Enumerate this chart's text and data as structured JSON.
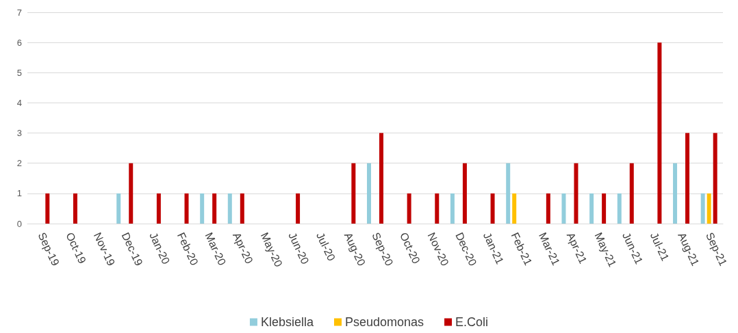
{
  "chart_data": {
    "type": "bar",
    "categories": [
      "Sep-19",
      "Oct-19",
      "Nov-19",
      "Dec-19",
      "Jan-20",
      "Feb-20",
      "Mar-20",
      "Apr-20",
      "May-20",
      "Jun-20",
      "Jul-20",
      "Aug-20",
      "Sep-20",
      "Oct-20",
      "Nov-20",
      "Dec-20",
      "Jan-21",
      "Feb-21",
      "Mar-21",
      "Apr-21",
      "May-21",
      "Jun-21",
      "Jul-21",
      "Aug-21",
      "Sep-21"
    ],
    "series": [
      {
        "name": "Klebsiella",
        "color": "#92cddc",
        "values": [
          0,
          0,
          0,
          1,
          0,
          0,
          1,
          1,
          0,
          0,
          0,
          0,
          2,
          0,
          0,
          1,
          0,
          2,
          0,
          1,
          1,
          1,
          0,
          2,
          1
        ]
      },
      {
        "name": "Pseudomonas",
        "color": "#ffc000",
        "values": [
          0,
          0,
          0,
          0,
          0,
          0,
          0,
          0,
          0,
          0,
          0,
          0,
          0,
          0,
          0,
          0,
          0,
          1,
          0,
          0,
          0,
          0,
          0,
          0,
          1
        ]
      },
      {
        "name": "E.Coli",
        "color": "#c00000",
        "values": [
          1,
          1,
          0,
          2,
          1,
          1,
          1,
          1,
          0,
          1,
          0,
          2,
          3,
          1,
          1,
          2,
          1,
          0,
          1,
          2,
          1,
          2,
          6,
          3,
          3
        ]
      }
    ],
    "ylim": [
      0,
      7
    ],
    "yticks": [
      0,
      1,
      2,
      3,
      4,
      5,
      6,
      7
    ],
    "grid": "y",
    "legend": "bottom"
  }
}
